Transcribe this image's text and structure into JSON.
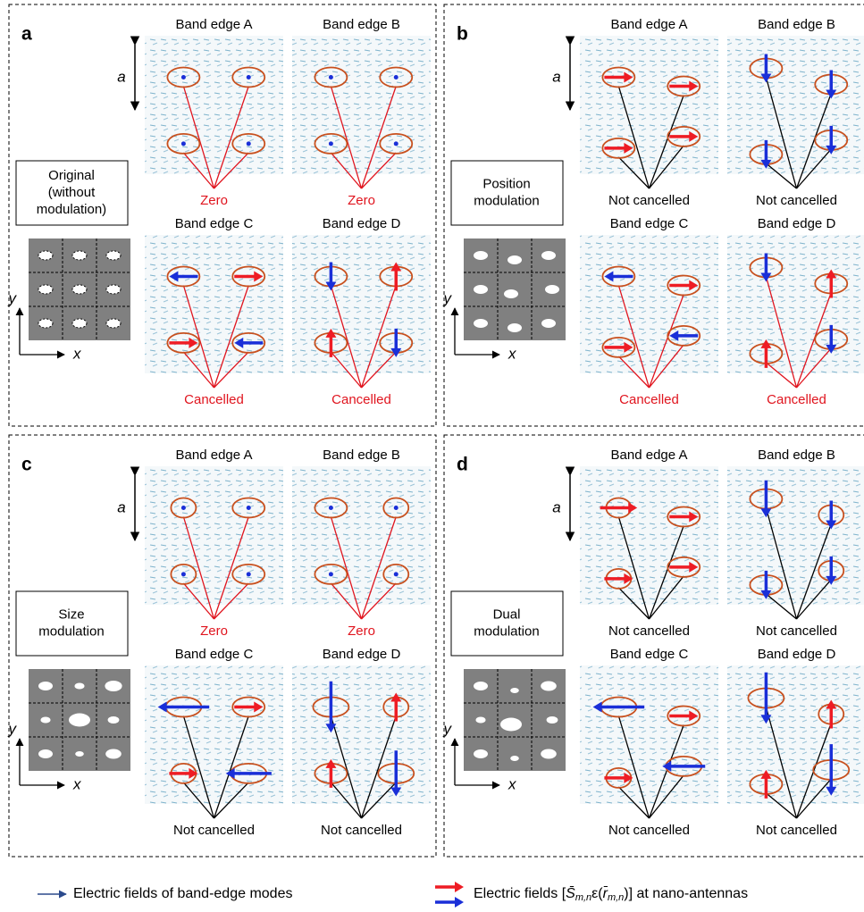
{
  "panels": [
    {
      "label": "a",
      "box": [
        "Original",
        "(without",
        "modulation)"
      ],
      "modes": [
        {
          "title": "Band edge A",
          "result": "Zero",
          "color": "#e0141e"
        },
        {
          "title": "Band edge B",
          "result": "Zero",
          "color": "#e0141e"
        },
        {
          "title": "Band edge C",
          "result": "Cancelled",
          "color": "#e0141e"
        },
        {
          "title": "Band edge D",
          "result": "Cancelled",
          "color": "#e0141e"
        }
      ]
    },
    {
      "label": "b",
      "box": [
        "Position",
        "modulation"
      ],
      "modes": [
        {
          "title": "Band edge A",
          "result": "Not cancelled",
          "color": "#000000"
        },
        {
          "title": "Band edge B",
          "result": "Not cancelled",
          "color": "#000000"
        },
        {
          "title": "Band edge C",
          "result": "Cancelled",
          "color": "#e0141e"
        },
        {
          "title": "Band edge D",
          "result": "Cancelled",
          "color": "#e0141e"
        }
      ]
    },
    {
      "label": "c",
      "box": [
        "Size",
        "modulation"
      ],
      "modes": [
        {
          "title": "Band edge A",
          "result": "Zero",
          "color": "#e0141e"
        },
        {
          "title": "Band edge B",
          "result": "Zero",
          "color": "#e0141e"
        },
        {
          "title": "Band edge C",
          "result": "Not cancelled",
          "color": "#000000"
        },
        {
          "title": "Band edge D",
          "result": "Not cancelled",
          "color": "#000000"
        }
      ]
    },
    {
      "label": "d",
      "box": [
        "Dual",
        "modulation"
      ],
      "modes": [
        {
          "title": "Band edge A",
          "result": "Not cancelled",
          "color": "#000000"
        },
        {
          "title": "Band edge B",
          "result": "Not cancelled",
          "color": "#000000"
        },
        {
          "title": "Band edge C",
          "result": "Not cancelled",
          "color": "#000000"
        },
        {
          "title": "Band edge D",
          "result": "Not cancelled",
          "color": "#000000"
        }
      ]
    }
  ],
  "axis_labels": {
    "x": "x",
    "y": "y",
    "lattice": "a"
  },
  "legend": {
    "field": "Electric fields of band-edge modes",
    "antenna": [
      "Electric fields [",
      "S̄",
      "m,n",
      "ε(",
      "r̄",
      "m,n",
      ")] at nano-antennas"
    ]
  }
}
